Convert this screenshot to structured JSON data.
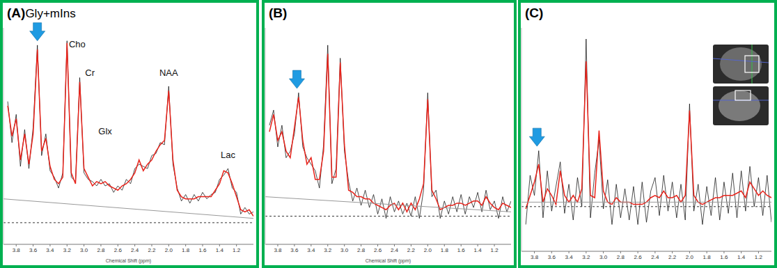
{
  "chart_data": [
    {
      "type": "line",
      "title": "(A)",
      "subtitle": "Gly+mIns",
      "x_label": "Chemical Shift (ppm)",
      "xlim": [
        3.95,
        1.0
      ],
      "xticks": [
        3.8,
        3.6,
        3.4,
        3.2,
        {
          "value": 3,
          "label": "3.0"
        },
        2.8,
        2.6,
        2.4,
        2.2,
        {
          "value": 2,
          "label": "2.0"
        },
        1.8,
        1.6,
        1.4,
        1.2
      ],
      "ylim": [
        0,
        100
      ],
      "tick_labels": "x",
      "series": [
        {
          "color": "#000000",
          "x": [
            3.9,
            3.85,
            3.8,
            3.75,
            3.7,
            3.65,
            3.6,
            3.55,
            3.5,
            3.45,
            3.4,
            3.35,
            3.3,
            3.25,
            3.2,
            3.15,
            3.1,
            3.05,
            3.0,
            2.95,
            2.9,
            2.85,
            2.8,
            2.75,
            2.7,
            2.65,
            2.6,
            2.55,
            2.5,
            2.45,
            2.4,
            2.35,
            2.3,
            2.25,
            2.2,
            2.15,
            2.1,
            2.05,
            2.0,
            1.95,
            1.9,
            1.85,
            1.8,
            1.75,
            1.7,
            1.65,
            1.6,
            1.55,
            1.5,
            1.45,
            1.4,
            1.35,
            1.3,
            1.25,
            1.2,
            1.15,
            1.1,
            1.05,
            1.0
          ],
          "values": [
            66,
            47,
            60,
            36,
            53,
            35,
            54,
            92,
            41,
            51,
            34,
            31,
            26,
            33,
            94,
            31,
            29,
            77,
            33,
            30,
            29,
            27,
            30,
            27,
            28,
            24,
            27,
            25,
            30,
            28,
            35,
            37,
            36,
            35,
            41,
            42,
            47,
            46,
            73,
            37,
            26,
            20,
            23,
            19,
            23,
            20,
            24,
            21,
            23,
            24,
            30,
            32,
            35,
            26,
            24,
            14,
            17,
            14,
            15
          ]
        },
        {
          "color": "#e8231b",
          "x": [
            3.9,
            3.85,
            3.8,
            3.75,
            3.7,
            3.65,
            3.6,
            3.55,
            3.5,
            3.45,
            3.4,
            3.35,
            3.3,
            3.25,
            3.2,
            3.15,
            3.1,
            3.05,
            3.0,
            2.95,
            2.9,
            2.85,
            2.8,
            2.75,
            2.7,
            2.65,
            2.6,
            2.55,
            2.5,
            2.45,
            2.4,
            2.35,
            2.3,
            2.25,
            2.2,
            2.15,
            2.1,
            2.05,
            2.0,
            1.95,
            1.9,
            1.85,
            1.8,
            1.75,
            1.7,
            1.65,
            1.6,
            1.55,
            1.5,
            1.45,
            1.4,
            1.35,
            1.3,
            1.25,
            1.2,
            1.15,
            1.1,
            1.05,
            1.0
          ],
          "values": [
            64,
            50,
            58,
            39,
            51,
            37,
            51,
            90,
            43,
            49,
            36,
            30,
            28,
            31,
            93,
            33,
            28,
            75,
            35,
            31,
            27,
            29,
            28,
            29,
            27,
            26,
            25,
            27,
            28,
            30,
            33,
            39,
            34,
            37,
            39,
            43,
            46,
            48,
            71,
            39,
            25,
            22,
            21,
            21,
            21,
            22,
            22,
            22,
            22,
            25,
            28,
            34,
            33,
            28,
            22,
            16,
            15,
            16,
            13
          ]
        },
        {
          "color": "#999999",
          "x": [
            3.95,
            1.0
          ],
          "values": [
            21,
            12
          ]
        },
        {
          "color": "#333333",
          "line_style": "dashed",
          "x": [
            3.95,
            1.0
          ],
          "values": [
            10,
            10
          ]
        }
      ],
      "annotations": [
        {
          "text": "Cho",
          "x": 3.08,
          "y": 92
        },
        {
          "text": "Cr",
          "x": 2.93,
          "y": 79
        },
        {
          "text": "Glx",
          "x": 2.75,
          "y": 52
        },
        {
          "text": "NAA",
          "x": 2.0,
          "y": 79
        },
        {
          "text": "Lac",
          "x": 1.3,
          "y": 41
        }
      ],
      "arrows": [
        {
          "x": 3.55,
          "y": 94,
          "color": "#1f9be2"
        }
      ]
    },
    {
      "type": "line",
      "title": "(B)",
      "x_label": "Chemical Shift (ppm)",
      "xlim": [
        3.95,
        1.0
      ],
      "xticks": [
        3.8,
        3.6,
        3.4,
        3.2,
        {
          "value": 3,
          "label": "3.0"
        },
        2.8,
        2.6,
        2.4,
        2.2,
        {
          "value": 2,
          "label": "2.0"
        },
        1.8,
        1.6,
        1.4,
        1.2
      ],
      "ylim": [
        0,
        100
      ],
      "tick_labels": "x",
      "series": [
        {
          "color": "#000000",
          "x": [
            3.9,
            3.85,
            3.8,
            3.75,
            3.7,
            3.65,
            3.6,
            3.55,
            3.5,
            3.45,
            3.4,
            3.35,
            3.3,
            3.25,
            3.2,
            3.15,
            3.1,
            3.05,
            3.0,
            2.95,
            2.9,
            2.85,
            2.8,
            2.75,
            2.7,
            2.65,
            2.6,
            2.55,
            2.5,
            2.45,
            2.4,
            2.35,
            2.3,
            2.25,
            2.2,
            2.15,
            2.1,
            2.05,
            2.0,
            1.95,
            1.9,
            1.85,
            1.8,
            1.75,
            1.7,
            1.65,
            1.6,
            1.55,
            1.5,
            1.45,
            1.4,
            1.35,
            1.3,
            1.25,
            1.2,
            1.15,
            1.1,
            1.05,
            1.0
          ],
          "values": [
            55,
            62,
            45,
            55,
            40,
            43,
            51,
            70,
            45,
            40,
            37,
            34,
            26,
            46,
            92,
            28,
            35,
            86,
            43,
            29,
            20,
            26,
            18,
            25,
            17,
            23,
            14,
            21,
            12,
            22,
            15,
            20,
            14,
            19,
            13,
            22,
            12,
            25,
            70,
            22,
            25,
            12,
            20,
            14,
            22,
            15,
            23,
            14,
            22,
            17,
            24,
            15,
            25,
            16,
            20,
            12,
            22,
            15,
            20
          ]
        },
        {
          "color": "#e8231b",
          "x": [
            3.9,
            3.85,
            3.8,
            3.75,
            3.7,
            3.65,
            3.6,
            3.55,
            3.5,
            3.45,
            3.4,
            3.35,
            3.3,
            3.25,
            3.2,
            3.15,
            3.1,
            3.05,
            3.0,
            2.95,
            2.9,
            2.85,
            2.8,
            2.75,
            2.7,
            2.65,
            2.6,
            2.55,
            2.5,
            2.45,
            2.4,
            2.35,
            2.3,
            2.25,
            2.2,
            2.15,
            2.1,
            2.05,
            2.0,
            1.95,
            1.9,
            1.85,
            1.8,
            1.75,
            1.7,
            1.65,
            1.6,
            1.55,
            1.5,
            1.45,
            1.4,
            1.35,
            1.3,
            1.25,
            1.2,
            1.15,
            1.1,
            1.05,
            1.0
          ],
          "values": [
            52,
            60,
            48,
            52,
            43,
            40,
            54,
            68,
            48,
            37,
            40,
            30,
            30,
            43,
            88,
            31,
            31,
            84,
            46,
            25,
            24,
            22,
            22,
            21,
            21,
            19,
            18,
            17,
            16,
            18,
            19,
            16,
            19,
            15,
            19,
            16,
            21,
            28,
            67,
            25,
            21,
            16,
            17,
            18,
            18,
            19,
            19,
            18,
            19,
            20,
            20,
            18,
            22,
            19,
            17,
            16,
            19,
            18,
            17
          ]
        },
        {
          "color": "#999999",
          "x": [
            3.95,
            1.0
          ],
          "values": [
            22,
            15
          ]
        },
        {
          "color": "#333333",
          "line_style": "dashed",
          "x": [
            3.95,
            1.0
          ],
          "values": [
            13,
            13
          ]
        }
      ],
      "arrows": [
        {
          "x": 3.57,
          "y": 72,
          "color": "#1f9be2"
        }
      ]
    },
    {
      "type": "line",
      "title": "(C)",
      "xlim": [
        3.95,
        1.05
      ],
      "xticks": [
        3.8,
        3.6,
        3.4,
        3.2,
        {
          "value": 3,
          "label": "3.0"
        },
        2.8,
        2.6,
        2.4,
        2.2,
        {
          "value": 2,
          "label": "2.0"
        },
        1.8,
        1.6,
        1.4,
        1.2
      ],
      "ylim": [
        0,
        100
      ],
      "tick_labels": "x",
      "series": [
        {
          "color": "#000000",
          "x": [
            3.9,
            3.85,
            3.8,
            3.75,
            3.7,
            3.65,
            3.6,
            3.55,
            3.5,
            3.45,
            3.4,
            3.35,
            3.3,
            3.25,
            3.2,
            3.15,
            3.1,
            3.05,
            3.0,
            2.95,
            2.9,
            2.85,
            2.8,
            2.75,
            2.7,
            2.65,
            2.6,
            2.55,
            2.5,
            2.45,
            2.4,
            2.35,
            2.3,
            2.25,
            2.2,
            2.15,
            2.1,
            2.05,
            2.0,
            1.95,
            1.9,
            1.85,
            1.8,
            1.75,
            1.7,
            1.65,
            1.6,
            1.55,
            1.5,
            1.45,
            1.4,
            1.35,
            1.3,
            1.25,
            1.2,
            1.15,
            1.1,
            1.05
          ],
          "values": [
            12,
            34,
            25,
            45,
            15,
            36,
            18,
            29,
            40,
            17,
            30,
            14,
            33,
            20,
            95,
            15,
            35,
            50,
            19,
            32,
            12,
            30,
            15,
            28,
            14,
            29,
            12,
            31,
            13,
            27,
            33,
            16,
            34,
            18,
            31,
            15,
            30,
            14,
            66,
            18,
            30,
            12,
            29,
            16,
            33,
            14,
            31,
            17,
            35,
            15,
            36,
            18,
            38,
            20,
            33,
            16,
            34,
            13
          ]
        },
        {
          "color": "#e8231b",
          "x": [
            3.9,
            3.85,
            3.8,
            3.75,
            3.7,
            3.65,
            3.6,
            3.55,
            3.5,
            3.45,
            3.4,
            3.35,
            3.3,
            3.25,
            3.2,
            3.15,
            3.1,
            3.05,
            3.0,
            2.95,
            2.9,
            2.85,
            2.8,
            2.75,
            2.7,
            2.65,
            2.6,
            2.55,
            2.5,
            2.45,
            2.4,
            2.35,
            2.3,
            2.25,
            2.2,
            2.15,
            2.1,
            2.05,
            2.0,
            1.95,
            1.9,
            1.85,
            1.8,
            1.75,
            1.7,
            1.65,
            1.6,
            1.55,
            1.5,
            1.45,
            1.4,
            1.35,
            1.3,
            1.25,
            1.2,
            1.15,
            1.1,
            1.05
          ],
          "values": [
            19,
            25,
            31,
            39,
            22,
            28,
            25,
            21,
            36,
            25,
            22,
            25,
            22,
            28,
            85,
            25,
            24,
            54,
            27,
            22,
            21,
            24,
            22,
            22,
            22,
            21,
            21,
            21,
            22,
            24,
            25,
            24,
            27,
            24,
            24,
            25,
            22,
            25,
            63,
            25,
            22,
            21,
            22,
            23,
            24,
            24,
            25,
            25,
            25,
            26,
            27,
            24,
            31,
            28,
            25,
            27,
            25,
            24
          ]
        },
        {
          "color": "#999999",
          "x": [
            3.95,
            1.05
          ],
          "values": [
            22,
            22
          ]
        },
        {
          "color": "#333333",
          "line_style": "dashed",
          "x": [
            3.95,
            1.05
          ],
          "values": [
            20,
            20
          ]
        }
      ],
      "arrows": [
        {
          "x": 3.77,
          "y": 47,
          "color": "#1f9be2"
        }
      ]
    }
  ]
}
